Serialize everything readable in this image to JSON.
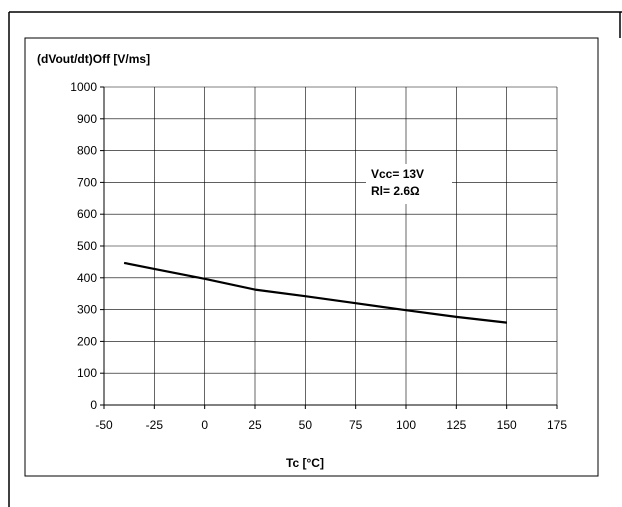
{
  "chart_data": {
    "type": "line",
    "ylabel": "(dVout/dt)Off [V/ms]",
    "xlabel": "Tc [°C]",
    "xlim": [
      -50,
      175
    ],
    "ylim": [
      0,
      1000
    ],
    "x_ticks": [
      "-50",
      "-25",
      "0",
      "25",
      "50",
      "75",
      "100",
      "125",
      "150",
      "175"
    ],
    "y_ticks": [
      "0",
      "100",
      "200",
      "300",
      "400",
      "500",
      "600",
      "700",
      "800",
      "900",
      "1000"
    ],
    "grid": true,
    "series": [
      {
        "x": [
          -40,
          -25,
          0,
          25,
          50,
          75,
          100,
          125,
          150
        ],
        "values": [
          447,
          428,
          397,
          363,
          342,
          320,
          298,
          277,
          259
        ]
      }
    ],
    "annotation": {
      "lines": [
        "Vcc= 13V",
        "Rl= 2.6Ω"
      ]
    }
  }
}
